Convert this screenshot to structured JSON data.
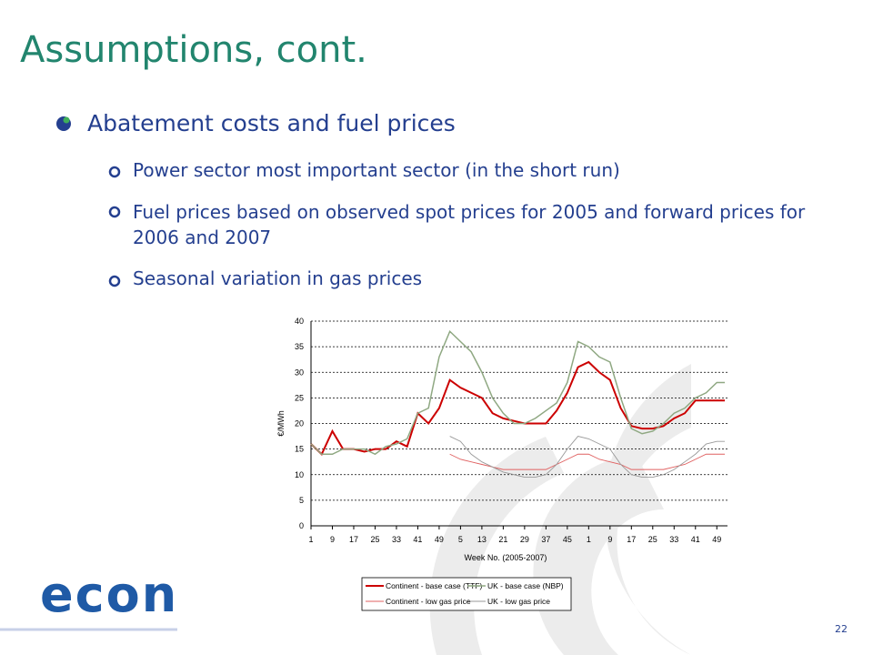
{
  "header": {
    "title": "Assumptions, cont."
  },
  "bullets": {
    "main": "Abatement costs and fuel prices",
    "sub": [
      "Power sector most important sector (in the short run)",
      "Fuel prices based on observed spot prices for 2005 and forward prices for 2006 and 2007",
      "Seasonal variation in gas prices"
    ]
  },
  "logo": "econ",
  "page_number": "22",
  "chart_data": {
    "type": "line",
    "ylabel": "€/MWh",
    "xlabel": "Week No. (2005-2007)",
    "x": [
      1,
      5,
      9,
      13,
      17,
      21,
      25,
      29,
      33,
      37,
      41,
      45,
      49,
      53,
      57,
      61,
      65,
      69,
      73,
      77,
      81,
      85,
      89,
      93,
      97,
      101,
      105,
      109,
      113,
      117,
      121,
      125,
      129,
      133,
      137,
      141,
      145,
      149,
      153,
      156
    ],
    "xlim": [
      1,
      157
    ],
    "xticks": [
      {
        "value": 1,
        "label": "1"
      },
      {
        "value": 9,
        "label": "9"
      },
      {
        "value": 17,
        "label": "17"
      },
      {
        "value": 25,
        "label": "25"
      },
      {
        "value": 33,
        "label": "33"
      },
      {
        "value": 41,
        "label": "41"
      },
      {
        "value": 49,
        "label": "49"
      },
      {
        "value": 57,
        "label": "5"
      },
      {
        "value": 65,
        "label": "13"
      },
      {
        "value": 73,
        "label": "21"
      },
      {
        "value": 81,
        "label": "29"
      },
      {
        "value": 89,
        "label": "37"
      },
      {
        "value": 97,
        "label": "45"
      },
      {
        "value": 105,
        "label": "1"
      },
      {
        "value": 113,
        "label": "9"
      },
      {
        "value": 121,
        "label": "17"
      },
      {
        "value": 129,
        "label": "25"
      },
      {
        "value": 137,
        "label": "33"
      },
      {
        "value": 145,
        "label": "41"
      },
      {
        "value": 153,
        "label": "49"
      }
    ],
    "ylim": [
      0,
      40
    ],
    "yticks": [
      0,
      5,
      10,
      15,
      20,
      25,
      30,
      35,
      40
    ],
    "grid": true,
    "series": [
      {
        "name": "Continent - base case (TTF)",
        "color": "#cc0000",
        "values": [
          16,
          14,
          18.5,
          15,
          15,
          14.5,
          15,
          15,
          16.5,
          15.5,
          22,
          20,
          23,
          28.5,
          27,
          26,
          25,
          22,
          21,
          20.5,
          20,
          20,
          20,
          22.5,
          26,
          31,
          32,
          30,
          28.5,
          23,
          19.5,
          19,
          19,
          19.5,
          21,
          22,
          24.5,
          24.5,
          24.5,
          24.5
        ]
      },
      {
        "name": "UK - base case (NBP)",
        "color": "#8fa882",
        "values": [
          16,
          14,
          14,
          15,
          15,
          15,
          14,
          15.5,
          16,
          17,
          22,
          23,
          33,
          38,
          36,
          34,
          30,
          25,
          22,
          20,
          20,
          21,
          22.5,
          24,
          28,
          36,
          35,
          33,
          32,
          25,
          19,
          18,
          18.5,
          20,
          22,
          23,
          25,
          26,
          28,
          28
        ]
      },
      {
        "name": "Continent - low gas price",
        "color": "#e06060",
        "values": [
          null,
          null,
          null,
          null,
          null,
          null,
          null,
          null,
          null,
          null,
          null,
          null,
          null,
          14,
          13,
          12.5,
          12,
          11.5,
          11,
          11,
          11,
          11,
          11,
          12,
          13,
          14,
          14,
          13,
          12.5,
          12,
          11,
          11,
          11,
          11,
          11.5,
          12,
          13,
          14,
          14,
          14
        ]
      },
      {
        "name": "UK - low gas price",
        "color": "#999999",
        "values": [
          null,
          null,
          null,
          null,
          null,
          null,
          null,
          null,
          null,
          null,
          null,
          null,
          null,
          17.5,
          16.5,
          14,
          12.5,
          11.5,
          10.5,
          10,
          9.5,
          9.5,
          10,
          12,
          15,
          17.5,
          17,
          16,
          15,
          12,
          10,
          9.5,
          9.5,
          10,
          11,
          12.5,
          14,
          16,
          16.5,
          16.5
        ]
      }
    ]
  }
}
